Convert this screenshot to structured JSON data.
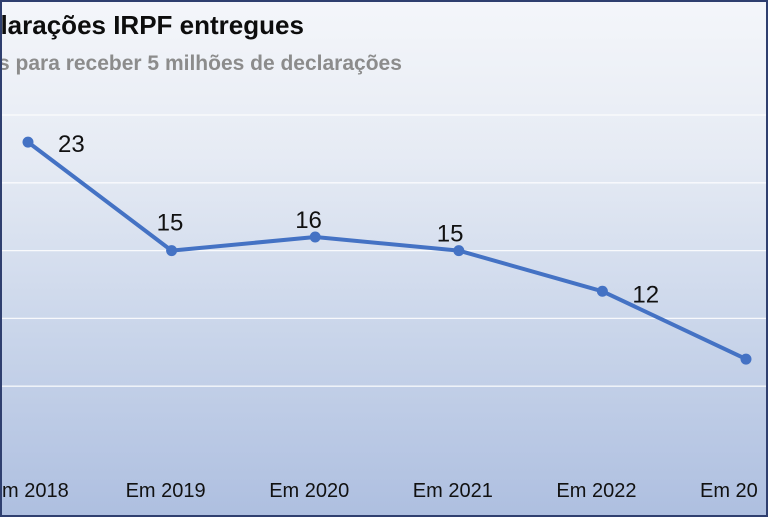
{
  "chart": {
    "title": "clarações IRPF entregues",
    "subtitle": "s para receber 5 milhões de declarações"
  },
  "chart_data": {
    "type": "line",
    "title": "clarações IRPF entregues",
    "subtitle": "s para receber 5 milhões de declarações",
    "categories": [
      "m 2018",
      "Em 2019",
      "Em 2020",
      "Em 2021",
      "Em 2022",
      "Em 20"
    ],
    "series": [
      {
        "values": [
          23,
          15,
          16,
          15,
          12,
          7
        ],
        "labels": [
          "23",
          "15",
          "16",
          "15",
          "12",
          ""
        ],
        "color": "#4472c4"
      }
    ],
    "ylim": [
      0,
      25
    ],
    "grid": true,
    "legend": "none"
  }
}
